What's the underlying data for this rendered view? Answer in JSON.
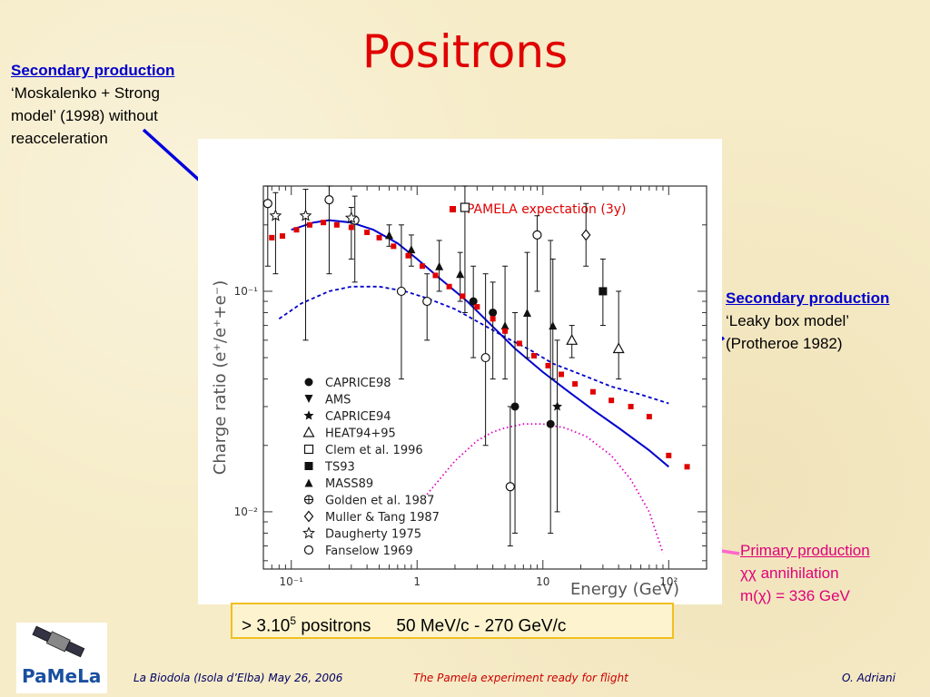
{
  "title": "Positrons",
  "notes": {
    "moskalenko": {
      "head": "Secondary production",
      "lines": [
        "‘Moskalenko + Strong",
        "model’ (1998) without",
        "reacceleration"
      ]
    },
    "leaky": {
      "head": "Secondary production",
      "lines": [
        "‘Leaky box model’",
        "(Protheroe 1982)"
      ]
    },
    "primary": {
      "head": "Primary production",
      "lines": [
        "χχ annihilation",
        "m(χ) = 336 GeV"
      ]
    }
  },
  "callout": {
    "prefix": "> 3.10",
    "exp": "5",
    "mid": " positrons",
    "range": "50 MeV/c - 270 GeV/c"
  },
  "footer": {
    "left": "La Biodola (Isola d’Elba) May 26, 2006",
    "center": "The Pamela experiment ready for flight",
    "right": "O. Adriani"
  },
  "logo": {
    "text": "PaMeLa"
  },
  "colors": {
    "title": "#e00000",
    "secondary_note": "#0000cc",
    "primary_note": "#e0007a",
    "pamela": "#e00000"
  },
  "chart_data": {
    "type": "scatter",
    "xlabel": "Energy (GeV)",
    "ylabel": "Charge ratio (e⁺/e⁺+e⁻)",
    "xscale": "log",
    "yscale": "log",
    "xlim": [
      0.06,
      200
    ],
    "ylim": [
      0.0055,
      0.3
    ],
    "xticks": [
      {
        "value": 0.1,
        "label": "10⁻¹"
      },
      {
        "value": 1,
        "label": "1"
      },
      {
        "value": 10,
        "label": "10"
      },
      {
        "value": 100,
        "label": "10²"
      }
    ],
    "yticks": [
      {
        "value": 0.01,
        "label": "10⁻²"
      },
      {
        "value": 0.1,
        "label": "10⁻¹"
      }
    ],
    "legend_top": "PAMELA expectation (3y)",
    "pamela": {
      "x": [
        0.07,
        0.085,
        0.11,
        0.14,
        0.18,
        0.23,
        0.3,
        0.4,
        0.5,
        0.65,
        0.85,
        1.1,
        1.4,
        1.8,
        2.3,
        3.0,
        4.0,
        5.0,
        6.5,
        8.5,
        11,
        14,
        18,
        25,
        35,
        50,
        70,
        100,
        140
      ],
      "y": [
        0.175,
        0.178,
        0.19,
        0.2,
        0.205,
        0.2,
        0.195,
        0.185,
        0.175,
        0.16,
        0.145,
        0.13,
        0.118,
        0.105,
        0.095,
        0.085,
        0.075,
        0.066,
        0.058,
        0.051,
        0.046,
        0.042,
        0.038,
        0.035,
        0.032,
        0.03,
        0.027,
        0.018,
        0.016
      ]
    },
    "legend": [
      {
        "name": "CAPRICE98",
        "marker": "dot"
      },
      {
        "name": "AMS",
        "marker": "tri-down"
      },
      {
        "name": "CAPRICE94",
        "marker": "star-small"
      },
      {
        "name": "HEAT94+95",
        "marker": "tri-open"
      },
      {
        "name": "Clem et al. 1996",
        "marker": "square-open"
      },
      {
        "name": "TS93",
        "marker": "square"
      },
      {
        "name": "MASS89",
        "marker": "tri"
      },
      {
        "name": "Golden et al. 1987",
        "marker": "circle-cross"
      },
      {
        "name": "Muller & Tang 1987",
        "marker": "diamond-open"
      },
      {
        "name": "Daugherty 1975",
        "marker": "star-open"
      },
      {
        "name": "Fanselow 1969",
        "marker": "circle-open"
      }
    ],
    "data_points": [
      {
        "marker": "circle-open",
        "x": 0.065,
        "y": 0.25,
        "ylo": 0.13,
        "yhi": 0.3
      },
      {
        "marker": "star-open",
        "x": 0.075,
        "y": 0.22,
        "ylo": 0.12,
        "yhi": 0.28
      },
      {
        "marker": "star-open",
        "x": 0.13,
        "y": 0.22,
        "ylo": 0.06,
        "yhi": 0.29
      },
      {
        "marker": "circle-open",
        "x": 0.2,
        "y": 0.26,
        "ylo": 0.12,
        "yhi": 0.3
      },
      {
        "marker": "circle-open",
        "x": 0.32,
        "y": 0.21,
        "ylo": 0.11,
        "yhi": 0.27
      },
      {
        "marker": "star-open",
        "x": 0.3,
        "y": 0.215,
        "ylo": 0.14,
        "yhi": 0.24
      },
      {
        "marker": "circle-open",
        "x": 0.75,
        "y": 0.1,
        "ylo": 0.04,
        "yhi": 0.2
      },
      {
        "marker": "circle-open",
        "x": 1.2,
        "y": 0.09,
        "ylo": 0.06,
        "yhi": 0.12
      },
      {
        "marker": "triangle",
        "x": 0.6,
        "y": 0.18,
        "ylo": 0.16,
        "yhi": 0.2
      },
      {
        "marker": "triangle",
        "x": 0.9,
        "y": 0.155,
        "ylo": 0.13,
        "yhi": 0.18
      },
      {
        "marker": "triangle",
        "x": 1.5,
        "y": 0.13,
        "ylo": 0.1,
        "yhi": 0.17
      },
      {
        "marker": "triangle",
        "x": 2.2,
        "y": 0.12,
        "ylo": 0.09,
        "yhi": 0.15
      },
      {
        "marker": "circle-open",
        "x": 3.5,
        "y": 0.05,
        "ylo": 0.02,
        "yhi": 0.12
      },
      {
        "marker": "circle-open",
        "x": 5.5,
        "y": 0.013,
        "ylo": 0.007,
        "yhi": 0.03
      },
      {
        "marker": "circle-open",
        "x": 9,
        "y": 0.18,
        "ylo": 0.1,
        "yhi": 0.22
      },
      {
        "marker": "square-open",
        "x": 2.4,
        "y": 0.24,
        "ylo": 0.08,
        "yhi": 0.3
      },
      {
        "marker": "dot",
        "x": 2.8,
        "y": 0.09,
        "ylo": 0.05,
        "yhi": 0.13
      },
      {
        "marker": "dot",
        "x": 4.0,
        "y": 0.08,
        "ylo": 0.04,
        "yhi": 0.11
      },
      {
        "marker": "dot",
        "x": 6.0,
        "y": 0.03,
        "ylo": 0.008,
        "yhi": 0.08
      },
      {
        "marker": "dot",
        "x": 11.5,
        "y": 0.025,
        "ylo": 0.008,
        "yhi": 0.17
      },
      {
        "marker": "tri",
        "x": 5,
        "y": 0.07,
        "ylo": 0.04,
        "yhi": 0.13
      },
      {
        "marker": "tri",
        "x": 7.5,
        "y": 0.08,
        "ylo": 0.05,
        "yhi": 0.15
      },
      {
        "marker": "tri",
        "x": 12,
        "y": 0.07,
        "ylo": 0.04,
        "yhi": 0.14
      },
      {
        "marker": "tri-open",
        "x": 17,
        "y": 0.06,
        "ylo": 0.05,
        "yhi": 0.07
      },
      {
        "marker": "tri-open",
        "x": 40,
        "y": 0.055,
        "ylo": 0.04,
        "yhi": 0.1
      },
      {
        "marker": "diamond-open",
        "x": 22,
        "y": 0.18,
        "ylo": 0.13,
        "yhi": 0.25
      },
      {
        "marker": "square",
        "x": 30,
        "y": 0.1,
        "ylo": 0.07,
        "yhi": 0.14
      },
      {
        "marker": "star-small",
        "x": 13,
        "y": 0.03,
        "ylo": 0.01,
        "yhi": 0.06
      }
    ],
    "curves": [
      {
        "name": "Moskalenko + Strong",
        "style": "solid",
        "color": "#0000cc",
        "x": [
          0.1,
          0.15,
          0.2,
          0.3,
          0.45,
          0.7,
          1,
          1.5,
          2.5,
          4,
          6,
          10,
          15,
          25,
          40,
          70,
          100
        ],
        "y": [
          0.19,
          0.205,
          0.21,
          0.205,
          0.19,
          0.165,
          0.14,
          0.115,
          0.09,
          0.069,
          0.055,
          0.043,
          0.036,
          0.029,
          0.024,
          0.019,
          0.016
        ]
      },
      {
        "name": "Leaky box (Protheroe 1982)",
        "style": "dotted",
        "color": "#0000cc",
        "x": [
          0.08,
          0.12,
          0.2,
          0.3,
          0.5,
          0.8,
          1.2,
          2,
          3,
          5,
          8,
          12,
          20,
          35,
          60,
          100
        ],
        "y": [
          0.075,
          0.088,
          0.1,
          0.105,
          0.105,
          0.1,
          0.093,
          0.083,
          0.073,
          0.062,
          0.054,
          0.047,
          0.042,
          0.037,
          0.034,
          0.031
        ]
      },
      {
        "name": "Primary production",
        "style": "dotted",
        "color": "#e000c0",
        "x": [
          1.2,
          2,
          3,
          4,
          5,
          7,
          10,
          15,
          22,
          35,
          50,
          70,
          90
        ],
        "y": [
          0.012,
          0.017,
          0.021,
          0.023,
          0.024,
          0.025,
          0.025,
          0.024,
          0.022,
          0.018,
          0.014,
          0.01,
          0.0065
        ]
      }
    ]
  }
}
